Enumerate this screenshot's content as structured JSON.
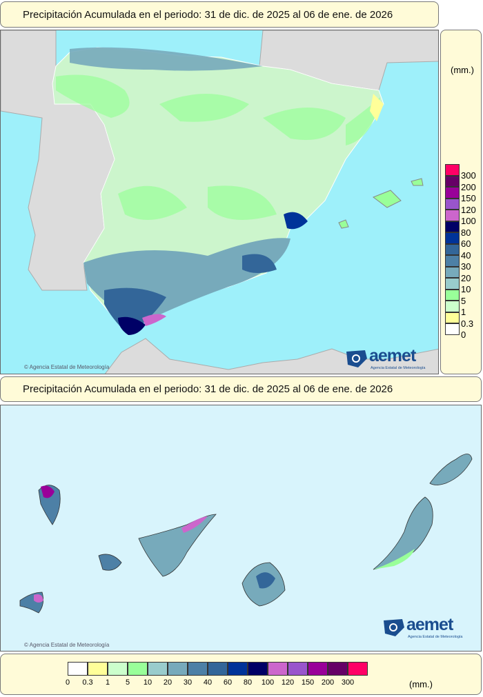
{
  "peninsula": {
    "title": "Precipitación Acumulada en el periodo: 31 de dic. de 2025 al 06 de ene. de 2026",
    "credit": "© Agencia Estatal de Meteorología"
  },
  "canarias": {
    "title": "Precipitación Acumulada en el periodo: 31 de dic. de 2025 al 06 de ene. de 2026",
    "credit": "© Agencia Estatal de Meteorología"
  },
  "logo": {
    "word": "aemet",
    "subtitle": "Agencia Estatal de Meteorología"
  },
  "legend": {
    "unit": "(mm.)",
    "labels": [
      "0",
      "0.3",
      "1",
      "5",
      "10",
      "20",
      "30",
      "40",
      "60",
      "80",
      "100",
      "120",
      "150",
      "200",
      "300"
    ],
    "colors": [
      "#ffffff",
      "#ffff99",
      "#ccffcc",
      "#99ff99",
      "#99cccc",
      "#77aabb",
      "#4d80a6",
      "#336699",
      "#003399",
      "#000066",
      "#cc66cc",
      "#9955cc",
      "#990099",
      "#660066",
      "#ff0066"
    ]
  },
  "colors": {
    "sea": "#9ef0fa",
    "land_other": "#dcdcdc",
    "canary_bg": "#d8f4fc",
    "panel": "#fffbd8"
  }
}
